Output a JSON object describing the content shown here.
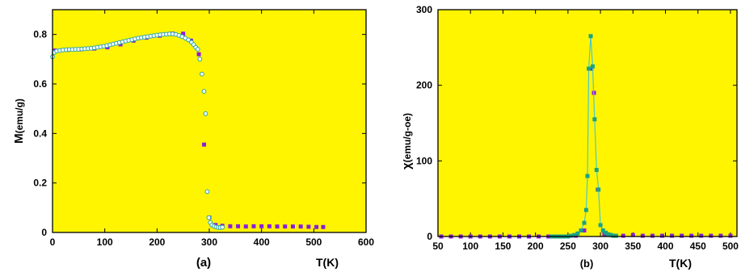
{
  "figure": {
    "background": "#ffffff",
    "plot_background": "#fff500",
    "colors": {
      "series_square": "#8a1fd6",
      "series_circle_fill": "#ffffff",
      "series_circle_edge": "#2aa4a8",
      "series_line": "#49c9c9",
      "series_teal_square": "#1aa383"
    }
  },
  "chart_data": [
    {
      "id": "a",
      "type": "scatter",
      "panel_label": "(a)",
      "xlabel": "T(K)",
      "ylabel": "M(emu/g)",
      "ylabel_parts": {
        "main": "M",
        "paren": "(emu/g)"
      },
      "xlim": [
        0,
        600
      ],
      "ylim": [
        0,
        0.9
      ],
      "xticks": [
        0,
        100,
        200,
        300,
        400,
        500,
        600
      ],
      "yticks": [
        0,
        0.2,
        0.4,
        0.6,
        0.8
      ],
      "ytick_labels": [
        "0",
        "0.2",
        "0.4",
        "0.6",
        "0.8"
      ],
      "grid": false,
      "series": [
        {
          "marker": "square",
          "color": "#8a1fd6",
          "points": [
            [
              5,
              0.735
            ],
            [
              30,
              0.738
            ],
            [
              55,
              0.74
            ],
            [
              80,
              0.743
            ],
            [
              105,
              0.748
            ],
            [
              130,
              0.76
            ],
            [
              155,
              0.775
            ],
            [
              180,
              0.787
            ],
            [
              205,
              0.795
            ],
            [
              230,
              0.803
            ],
            [
              250,
              0.803
            ],
            [
              265,
              0.775
            ],
            [
              280,
              0.72
            ],
            [
              290,
              0.355
            ],
            [
              300,
              0.06
            ],
            [
              312,
              0.03
            ],
            [
              325,
              0.027
            ],
            [
              340,
              0.025
            ],
            [
              355,
              0.025
            ],
            [
              370,
              0.024
            ],
            [
              385,
              0.025
            ],
            [
              400,
              0.025
            ],
            [
              415,
              0.025
            ],
            [
              430,
              0.024
            ],
            [
              445,
              0.024
            ],
            [
              460,
              0.024
            ],
            [
              475,
              0.024
            ],
            [
              490,
              0.023
            ],
            [
              505,
              0.022
            ],
            [
              518,
              0.022
            ]
          ]
        },
        {
          "marker": "circle",
          "color": "#2aa4a8",
          "points": [
            [
              0,
              0.71
            ],
            [
              3,
              0.727
            ],
            [
              8,
              0.733
            ],
            [
              14,
              0.735
            ],
            [
              20,
              0.737
            ],
            [
              26,
              0.738
            ],
            [
              32,
              0.739
            ],
            [
              38,
              0.739
            ],
            [
              44,
              0.74
            ],
            [
              50,
              0.74
            ],
            [
              56,
              0.741
            ],
            [
              62,
              0.742
            ],
            [
              68,
              0.743
            ],
            [
              74,
              0.744
            ],
            [
              80,
              0.746
            ],
            [
              86,
              0.748
            ],
            [
              92,
              0.75
            ],
            [
              98,
              0.752
            ],
            [
              104,
              0.755
            ],
            [
              110,
              0.758
            ],
            [
              116,
              0.761
            ],
            [
              122,
              0.764
            ],
            [
              128,
              0.767
            ],
            [
              134,
              0.77
            ],
            [
              140,
              0.773
            ],
            [
              146,
              0.776
            ],
            [
              152,
              0.779
            ],
            [
              158,
              0.782
            ],
            [
              164,
              0.785
            ],
            [
              170,
              0.787
            ],
            [
              176,
              0.789
            ],
            [
              182,
              0.791
            ],
            [
              188,
              0.793
            ],
            [
              194,
              0.795
            ],
            [
              200,
              0.797
            ],
            [
              206,
              0.799
            ],
            [
              212,
              0.8
            ],
            [
              218,
              0.801
            ],
            [
              224,
              0.802
            ],
            [
              230,
              0.802
            ],
            [
              236,
              0.8
            ],
            [
              242,
              0.796
            ],
            [
              248,
              0.791
            ],
            [
              254,
              0.785
            ],
            [
              260,
              0.778
            ],
            [
              266,
              0.768
            ],
            [
              270,
              0.759
            ],
            [
              274,
              0.748
            ],
            [
              278,
              0.74
            ],
            [
              282,
              0.7
            ],
            [
              286,
              0.64
            ],
            [
              290,
              0.57
            ],
            [
              293,
              0.48
            ],
            [
              296,
              0.165
            ],
            [
              299,
              0.06
            ],
            [
              302,
              0.04
            ],
            [
              305,
              0.03
            ],
            [
              309,
              0.025
            ],
            [
              313,
              0.022
            ],
            [
              317,
              0.02
            ],
            [
              321,
              0.02
            ],
            [
              325,
              0.021
            ]
          ]
        }
      ]
    },
    {
      "id": "b",
      "type": "line",
      "panel_label": "(b)",
      "xlabel": "T(K)",
      "ylabel": "χ(emu/g-oe)",
      "ylabel_parts": {
        "main": "χ",
        "paren": "(emu/g-oe)"
      },
      "xlim": [
        50,
        510
      ],
      "ylim": [
        0,
        300
      ],
      "xticks": [
        50,
        100,
        150,
        200,
        250,
        300,
        350,
        400,
        450,
        500
      ],
      "xtick_labels": [
        "50",
        "100",
        "150",
        "200",
        "250",
        "300",
        "350",
        "400",
        "450",
        "500"
      ],
      "yticks": [
        0,
        100,
        200,
        300
      ],
      "grid": false,
      "series": [
        {
          "marker": "square",
          "color": "#8a1fd6",
          "points": [
            [
              55,
              0
            ],
            [
              70,
              0
            ],
            [
              85,
              0
            ],
            [
              100,
              0
            ],
            [
              115,
              0
            ],
            [
              130,
              0
            ],
            [
              145,
              0
            ],
            [
              160,
              0
            ],
            [
              175,
              0
            ],
            [
              190,
              0
            ],
            [
              205,
              0
            ],
            [
              220,
              0
            ],
            [
              235,
              0
            ],
            [
              250,
              0
            ],
            [
              262,
              1
            ],
            [
              275,
              8
            ],
            [
              286,
              222
            ],
            [
              290,
              190
            ],
            [
              296,
              62
            ],
            [
              306,
              3
            ],
            [
              320,
              1
            ],
            [
              335,
              1
            ],
            [
              350,
              2
            ],
            [
              365,
              1
            ],
            [
              380,
              1
            ],
            [
              395,
              1
            ],
            [
              410,
              1
            ],
            [
              425,
              1
            ],
            [
              440,
              1
            ],
            [
              455,
              1
            ],
            [
              470,
              1
            ],
            [
              485,
              1
            ],
            [
              500,
              1
            ]
          ]
        },
        {
          "marker": "square",
          "color": "#1aa383",
          "line_color": "#49c9c9",
          "points": [
            [
              225,
              0
            ],
            [
              230,
              0
            ],
            [
              235,
              0
            ],
            [
              240,
              0
            ],
            [
              245,
              0
            ],
            [
              250,
              0
            ],
            [
              255,
              1
            ],
            [
              260,
              2
            ],
            [
              265,
              4
            ],
            [
              270,
              8
            ],
            [
              275,
              18
            ],
            [
              278,
              35
            ],
            [
              280,
              80
            ],
            [
              282,
              222
            ],
            [
              285,
              265
            ],
            [
              288,
              225
            ],
            [
              291,
              155
            ],
            [
              294,
              88
            ],
            [
              297,
              62
            ],
            [
              300,
              15
            ],
            [
              304,
              8
            ],
            [
              308,
              5
            ],
            [
              312,
              3
            ],
            [
              316,
              2
            ],
            [
              320,
              1
            ],
            [
              324,
              1
            ]
          ]
        }
      ]
    }
  ]
}
